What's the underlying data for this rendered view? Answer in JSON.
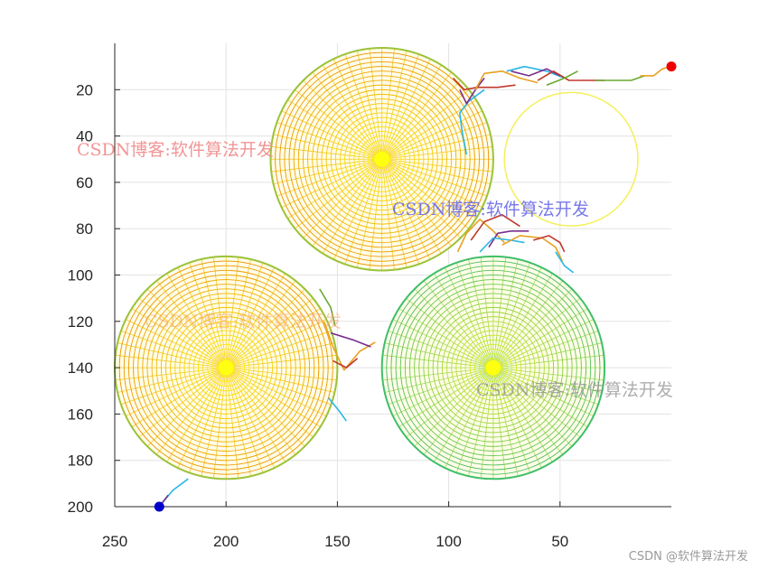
{
  "chart_data": {
    "type": "scatter",
    "xlim": [
      0,
      250
    ],
    "ylim": [
      0,
      200
    ],
    "x_reversed": true,
    "y_reversed": true,
    "grid": true,
    "xticks": [
      250,
      200,
      150,
      100,
      50
    ],
    "yticks": [
      20,
      40,
      60,
      80,
      100,
      120,
      140,
      160,
      180,
      200
    ],
    "obstacles": [
      {
        "cx": 130,
        "cy": 50,
        "r": 50,
        "style": "mesh",
        "palette": "autumn"
      },
      {
        "cx": 200,
        "cy": 140,
        "r": 50,
        "style": "mesh",
        "palette": "autumn"
      },
      {
        "cx": 80,
        "cy": 140,
        "r": 50,
        "style": "mesh",
        "palette": "summer"
      },
      {
        "cx": 45,
        "cy": 50,
        "r": 30,
        "style": "outline",
        "color": "#f5f05a"
      }
    ],
    "start": {
      "x": 230,
      "y": 200,
      "color": "#0000cc"
    },
    "goal": {
      "x": 0,
      "y": 10,
      "color": "#ee0000"
    },
    "paths": [
      {
        "color": "#2ab7e6",
        "points": [
          [
            230,
            200
          ],
          [
            224,
            193
          ],
          [
            217,
            188
          ]
        ]
      },
      {
        "color": "#7a2d8f",
        "points": [
          [
            230,
            200
          ],
          [
            226,
            195
          ]
        ]
      },
      {
        "color": "#e8a020",
        "points": [
          [
            156,
            120
          ],
          [
            152,
            131
          ],
          [
            147,
            141
          ],
          [
            140,
            133
          ],
          [
            133,
            129
          ]
        ]
      },
      {
        "color": "#7a2d8f",
        "points": [
          [
            153,
            125
          ],
          [
            143,
            128
          ],
          [
            135,
            131
          ]
        ]
      },
      {
        "color": "#c0392b",
        "points": [
          [
            152,
            137
          ],
          [
            146,
            140
          ],
          [
            141,
            136
          ]
        ]
      },
      {
        "color": "#2ab7e6",
        "points": [
          [
            154,
            153
          ],
          [
            149,
            159
          ],
          [
            146,
            163
          ]
        ]
      },
      {
        "color": "#6aa830",
        "points": [
          [
            158,
            106
          ],
          [
            153,
            114
          ],
          [
            151,
            122
          ]
        ]
      },
      {
        "color": "#e8a020",
        "points": [
          [
            96,
            90
          ],
          [
            92,
            82
          ],
          [
            86,
            76
          ],
          [
            80,
            81
          ],
          [
            75,
            86
          ]
        ]
      },
      {
        "color": "#c0392b",
        "points": [
          [
            90,
            85
          ],
          [
            84,
            77
          ],
          [
            76,
            74
          ],
          [
            68,
            79
          ]
        ]
      },
      {
        "color": "#7a2d8f",
        "points": [
          [
            82,
            88
          ],
          [
            78,
            82
          ],
          [
            72,
            81
          ],
          [
            64,
            81
          ]
        ]
      },
      {
        "color": "#2ab7e6",
        "points": [
          [
            86,
            90
          ],
          [
            80,
            84
          ],
          [
            72,
            85
          ],
          [
            66,
            86
          ]
        ]
      },
      {
        "color": "#e8a020",
        "points": [
          [
            76,
            87
          ],
          [
            68,
            83
          ],
          [
            58,
            84
          ],
          [
            52,
            88
          ],
          [
            49,
            94
          ]
        ]
      },
      {
        "color": "#c0392b",
        "points": [
          [
            62,
            85
          ],
          [
            55,
            83
          ],
          [
            50,
            86
          ],
          [
            48,
            90
          ]
        ]
      },
      {
        "color": "#2ab7e6",
        "points": [
          [
            52,
            90
          ],
          [
            48,
            96
          ],
          [
            44,
            99
          ]
        ]
      },
      {
        "color": "#2ab7e6",
        "points": [
          [
            92,
            48
          ],
          [
            94,
            38
          ],
          [
            95,
            30
          ],
          [
            91,
            25
          ],
          [
            84,
            20
          ]
        ]
      },
      {
        "color": "#7a2d8f",
        "points": [
          [
            95,
            20
          ],
          [
            92,
            26
          ],
          [
            88,
            20
          ],
          [
            84,
            15
          ]
        ]
      },
      {
        "color": "#c0392b",
        "points": [
          [
            98,
            15
          ],
          [
            93,
            20
          ],
          [
            87,
            19
          ],
          [
            78,
            19
          ],
          [
            70,
            18
          ]
        ]
      },
      {
        "color": "#e8a020",
        "points": [
          [
            88,
            20
          ],
          [
            84,
            13
          ],
          [
            76,
            12
          ],
          [
            68,
            15
          ],
          [
            60,
            17
          ]
        ]
      },
      {
        "color": "#2ab7e6",
        "points": [
          [
            74,
            12
          ],
          [
            66,
            10
          ],
          [
            56,
            12
          ],
          [
            48,
            15
          ]
        ]
      },
      {
        "color": "#7a2d8f",
        "points": [
          [
            72,
            12
          ],
          [
            64,
            14
          ],
          [
            56,
            11
          ],
          [
            50,
            14
          ]
        ]
      },
      {
        "color": "#c0392b",
        "points": [
          [
            60,
            16
          ],
          [
            53,
            12
          ],
          [
            46,
            16
          ],
          [
            38,
            16
          ],
          [
            30,
            16
          ]
        ]
      },
      {
        "color": "#6aa830",
        "points": [
          [
            56,
            18
          ],
          [
            48,
            15
          ],
          [
            42,
            12
          ]
        ]
      },
      {
        "color": "#6aa830",
        "points": [
          [
            34,
            16
          ],
          [
            26,
            16
          ],
          [
            18,
            16
          ],
          [
            12,
            14
          ]
        ]
      },
      {
        "color": "#e8a020",
        "points": [
          [
            14,
            14
          ],
          [
            8,
            14
          ],
          [
            4,
            11
          ],
          [
            0,
            10
          ]
        ]
      }
    ]
  },
  "watermarks": {
    "red": "CSDN博客:软件算法开发",
    "blue": "CSDN博客:软件算法开发",
    "orange": "CSDN博客:软件算法开发",
    "gray": "CSDN博客:软件算法开发",
    "site": "CSDN @软件算法开发"
  }
}
